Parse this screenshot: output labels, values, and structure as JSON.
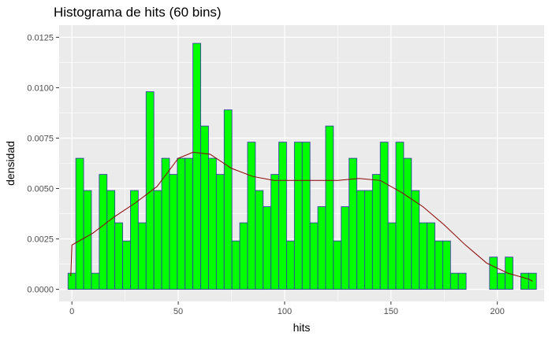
{
  "chart_data": {
    "type": "bar",
    "subtype": "histogram",
    "title": "Histograma de hits (60 bins)",
    "xlabel": "hits",
    "ylabel": "densidad",
    "xlim": [
      -6,
      222
    ],
    "ylim": [
      -0.0006,
      0.0131
    ],
    "x_ticks": [
      0,
      50,
      100,
      150,
      200
    ],
    "y_ticks": [
      0.0,
      0.0025,
      0.005,
      0.0075,
      0.01,
      0.0125
    ],
    "y_tick_labels": [
      "0.0000",
      "0.0025",
      "0.0050",
      "0.0075",
      "0.0100",
      "0.0125"
    ],
    "grid": true,
    "legend": "none",
    "bin_start": -1.83,
    "bin_width": 3.67,
    "values": [
      0.0008,
      0.0065,
      0.0049,
      0.0008,
      0.0057,
      0.0049,
      0.0033,
      0.0024,
      0.0049,
      0.0033,
      0.0098,
      0.0049,
      0.0065,
      0.0057,
      0.0065,
      0.0065,
      0.0122,
      0.0081,
      0.0065,
      0.0057,
      0.0089,
      0.0024,
      0.0033,
      0.0073,
      0.0049,
      0.0041,
      0.0057,
      0.0073,
      0.0024,
      0.0073,
      0.0073,
      0.0033,
      0.0041,
      0.0081,
      0.0024,
      0.0041,
      0.0065,
      0.0049,
      0.0049,
      0.0057,
      0.0073,
      0.0033,
      0.0073,
      0.0065,
      0.0049,
      0.0033,
      0.0033,
      0.0024,
      0.0024,
      0.0008,
      0.0008,
      0.0,
      0.0,
      0.0,
      0.0016,
      0.0008,
      0.0016,
      0.0,
      0.0008,
      0.0008
    ],
    "density_curve": {
      "x": [
        -0.5,
        0,
        10,
        20,
        30,
        40,
        50,
        57,
        65,
        75,
        85,
        95,
        105,
        115,
        125,
        135,
        145,
        155,
        165,
        175,
        185,
        195,
        205,
        215,
        216.5
      ],
      "y": [
        0.00065,
        0.0022,
        0.0028,
        0.0036,
        0.0043,
        0.0051,
        0.0065,
        0.0068,
        0.0067,
        0.006,
        0.0056,
        0.0054,
        0.0054,
        0.0054,
        0.0054,
        0.0055,
        0.0054,
        0.0048,
        0.0041,
        0.0032,
        0.0022,
        0.0013,
        0.0008,
        0.0005,
        0.0004
      ]
    },
    "colors": {
      "panel_background": "#ebebeb",
      "grid": "#ffffff",
      "bar_fill": "#00ff00",
      "bar_outline": "#3333aa",
      "curve": "#8b0000"
    }
  }
}
